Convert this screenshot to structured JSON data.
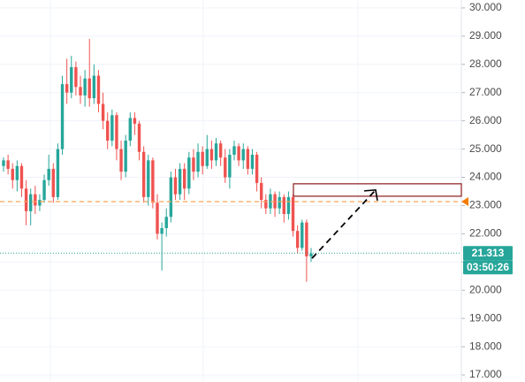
{
  "chart_data": {
    "type": "candlestick",
    "up_color": "#26a69a",
    "down_color": "#ef5350",
    "open": [
      24.4,
      24.6,
      24.3,
      23.9,
      24.4,
      23.6,
      22.8,
      23.4,
      23.0,
      23.2,
      23.9,
      24.3,
      23.3,
      25.0,
      27.3,
      27.0,
      27.9,
      27.2,
      26.9,
      27.5,
      26.8,
      27.6,
      26.6,
      26.0,
      25.3,
      26.2,
      25.0,
      24.2,
      25.3,
      26.1,
      25.9,
      24.9,
      23.3,
      24.6,
      23.1,
      22.0,
      22.2,
      22.6,
      24.0,
      23.4,
      24.3,
      23.6,
      24.7,
      24.2,
      24.9,
      24.4,
      25.0,
      24.6,
      25.2,
      24.7,
      24.0,
      24.8,
      25.1,
      24.6,
      25.0,
      24.3,
      24.8,
      23.8,
      23.2,
      22.9,
      23.4,
      22.9,
      23.3,
      22.7,
      23.3,
      22.1,
      21.5,
      22.4,
      21.2
    ],
    "high": [
      24.7,
      24.8,
      24.5,
      24.6,
      24.5,
      23.9,
      23.6,
      23.7,
      23.4,
      24.1,
      24.8,
      24.5,
      25.2,
      27.6,
      28.2,
      28.3,
      28.1,
      27.6,
      27.8,
      28.9,
      28.0,
      27.8,
      27.0,
      26.3,
      26.4,
      26.3,
      25.3,
      25.5,
      26.3,
      26.3,
      26.0,
      25.1,
      24.8,
      24.7,
      23.4,
      22.4,
      22.9,
      24.2,
      24.3,
      24.5,
      24.5,
      24.9,
      25.0,
      25.2,
      25.1,
      25.5,
      25.3,
      25.4,
      25.3,
      25.0,
      25.0,
      25.3,
      25.2,
      25.2,
      25.1,
      25.0,
      24.9,
      24.0,
      23.4,
      23.6,
      23.5,
      23.5,
      23.4,
      23.5,
      23.4,
      22.3,
      22.5,
      22.5,
      21.5
    ],
    "low": [
      24.2,
      24.1,
      23.6,
      23.5,
      23.3,
      22.3,
      22.3,
      22.7,
      22.8,
      23.1,
      23.7,
      23.1,
      23.2,
      24.8,
      26.6,
      26.8,
      26.9,
      26.6,
      26.5,
      26.5,
      26.6,
      26.3,
      25.7,
      25.0,
      25.1,
      24.6,
      23.9,
      24.0,
      25.1,
      25.5,
      24.6,
      23.1,
      23.0,
      22.9,
      21.8,
      20.7,
      21.9,
      22.4,
      23.2,
      23.2,
      23.2,
      23.4,
      23.9,
      24.0,
      24.1,
      24.3,
      24.3,
      24.4,
      24.4,
      23.8,
      23.6,
      24.6,
      24.4,
      24.3,
      24.1,
      24.1,
      23.5,
      22.9,
      22.7,
      22.7,
      22.6,
      22.7,
      22.4,
      22.5,
      21.9,
      21.3,
      21.4,
      20.3,
      21.0
    ],
    "close": [
      24.6,
      24.3,
      23.9,
      24.4,
      23.6,
      22.8,
      23.4,
      23.0,
      23.2,
      23.9,
      24.3,
      23.3,
      25.0,
      27.3,
      27.0,
      27.9,
      27.2,
      26.9,
      27.5,
      26.8,
      27.6,
      26.6,
      26.0,
      25.3,
      26.2,
      25.0,
      24.2,
      25.3,
      26.1,
      25.9,
      24.9,
      23.3,
      24.6,
      23.1,
      22.0,
      22.2,
      22.6,
      24.0,
      23.4,
      24.3,
      23.6,
      24.7,
      24.2,
      24.9,
      24.4,
      25.0,
      24.6,
      25.2,
      24.7,
      24.0,
      24.8,
      25.1,
      24.6,
      25.0,
      24.3,
      24.8,
      23.8,
      23.2,
      22.9,
      23.4,
      22.9,
      23.3,
      22.7,
      23.3,
      22.1,
      21.5,
      22.4,
      21.2,
      21.3
    ],
    "ylim": [
      16.75,
      30.28
    ],
    "yticks": [
      {
        "value": 17,
        "label": "17.000"
      },
      {
        "value": 18,
        "label": "18.000"
      },
      {
        "value": 19,
        "label": "19.000"
      },
      {
        "value": 20,
        "label": "20.000"
      },
      {
        "value": 21,
        "label": "21.000"
      },
      {
        "value": 22,
        "label": "22.000"
      },
      {
        "value": 23,
        "label": "23.000"
      },
      {
        "value": 24,
        "label": "24.000"
      },
      {
        "value": 25,
        "label": "25.000"
      },
      {
        "value": 26,
        "label": "26.000"
      },
      {
        "value": 27,
        "label": "27.000"
      },
      {
        "value": 28,
        "label": "28.000"
      },
      {
        "value": 29,
        "label": "29.000"
      },
      {
        "value": 30,
        "label": "30.000"
      }
    ],
    "grid": true,
    "last_price": 21.313,
    "countdown": "03:50:26",
    "level_line": {
      "value": 23.14,
      "color": "#f7a35c"
    },
    "zone": {
      "bottom": 23.33,
      "top": 23.77,
      "color": "#8b1a1a"
    },
    "projection": {
      "from": 21.13,
      "to": 23.55
    }
  }
}
